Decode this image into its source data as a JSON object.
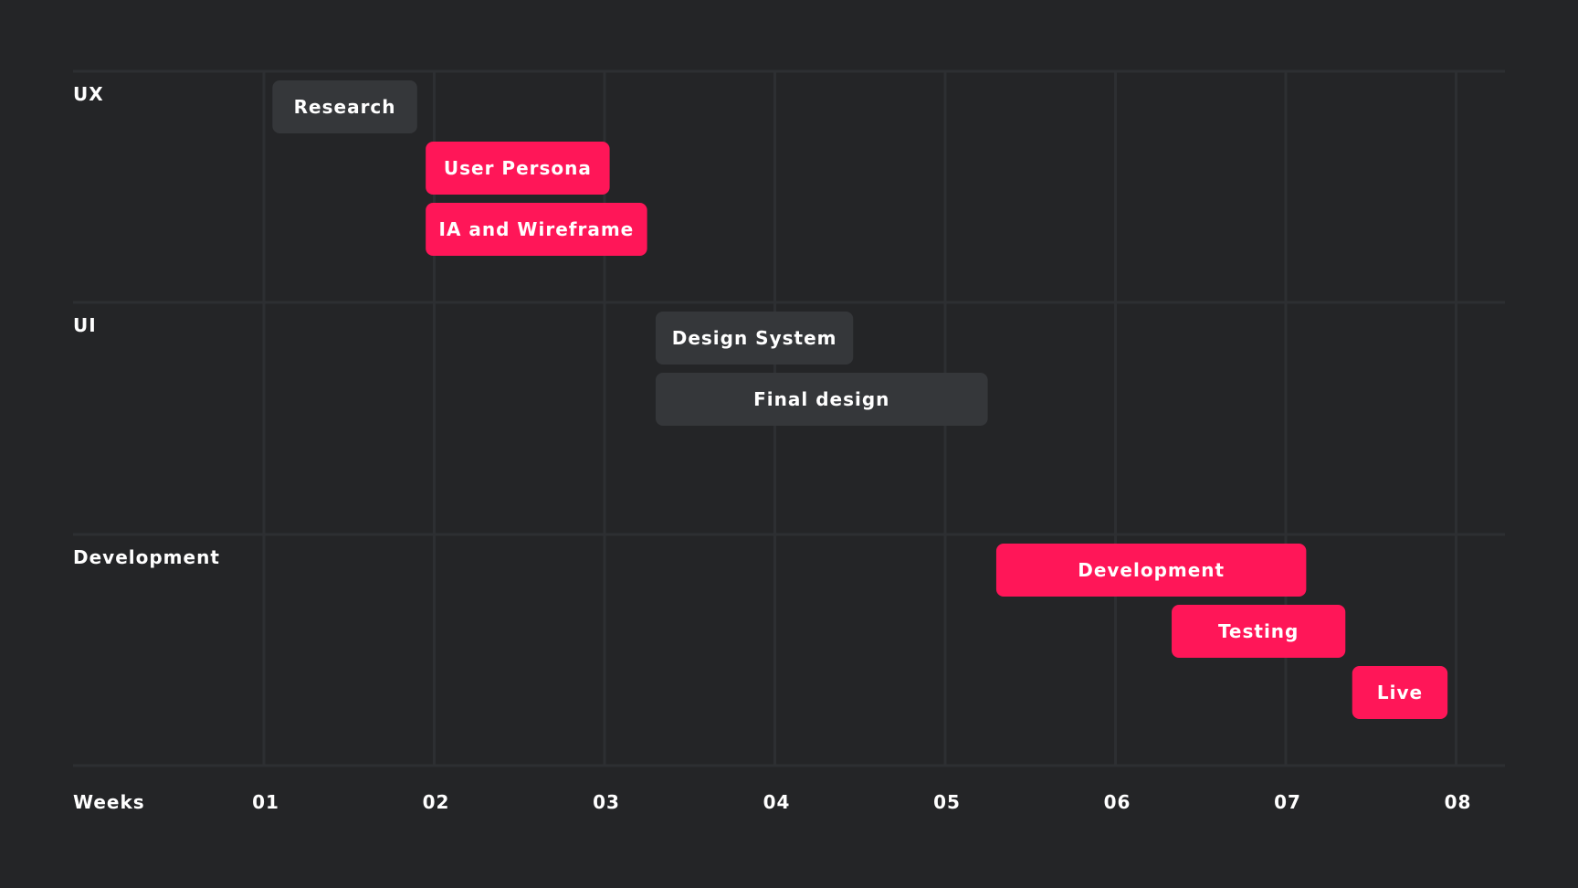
{
  "chart_data": {
    "type": "gantt",
    "xlabel": "Weeks",
    "weeks": [
      "01",
      "02",
      "03",
      "04",
      "05",
      "06",
      "07",
      "08"
    ],
    "groups": [
      "UX",
      "UI",
      "Development"
    ],
    "tasks": [
      {
        "group": "UX",
        "name": "Research",
        "start": 1.05,
        "end": 1.9,
        "style": "neutral"
      },
      {
        "group": "UX",
        "name": "User Persona",
        "start": 1.95,
        "end": 3.03,
        "style": "accent"
      },
      {
        "group": "UX",
        "name": "IA and Wireframe",
        "start": 1.95,
        "end": 3.25,
        "style": "accent"
      },
      {
        "group": "UI",
        "name": "Design System",
        "start": 3.3,
        "end": 4.46,
        "style": "neutral"
      },
      {
        "group": "UI",
        "name": "Final design",
        "start": 3.3,
        "end": 5.25,
        "style": "neutral"
      },
      {
        "group": "Development",
        "name": "Development",
        "start": 5.3,
        "end": 7.12,
        "style": "accent"
      },
      {
        "group": "Development",
        "name": "Testing",
        "start": 6.33,
        "end": 7.35,
        "style": "accent"
      },
      {
        "group": "Development",
        "name": "Live",
        "start": 7.39,
        "end": 7.95,
        "style": "accent"
      }
    ],
    "colors": {
      "background": "#242527",
      "accent": "#ff1658",
      "neutral": "#35373a",
      "grid": "#2d2f32",
      "text": "#ffffff"
    }
  }
}
